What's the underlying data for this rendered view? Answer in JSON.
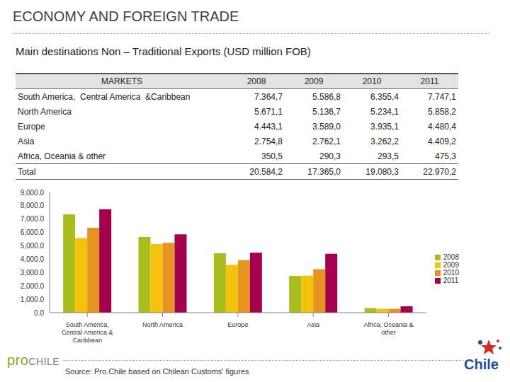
{
  "header": {
    "title": "ECONOMY AND FOREIGN TRADE",
    "subtitle": "Main destinations Non – Traditional Exports (USD million FOB)"
  },
  "table": {
    "columns": [
      "MARKETS",
      "2008",
      "2009",
      "2010",
      "2011"
    ],
    "rows": [
      [
        "South America,  Central America  &Caribbean",
        "7.364,7",
        "5.586,8",
        "6.355,4",
        "7.747,1"
      ],
      [
        "North America",
        "5.671,1",
        "5.136,7",
        "5.234,1",
        "5.858,2"
      ],
      [
        "Europe",
        "4.443,1",
        "3.589,0",
        "3.935,1",
        "4.480,4"
      ],
      [
        "Asia",
        "2.754,8",
        "2.762,1",
        "3.262,2",
        "4.409,2"
      ],
      [
        "Africa, Oceania & other",
        "350,5",
        "290,3",
        "293,5",
        "475,3"
      ],
      [
        "Total",
        "20.584,2",
        "17.365,0",
        "19.080,3",
        "22.970,2"
      ]
    ]
  },
  "chart_data": {
    "type": "bar",
    "categories": [
      "South America, Central America & Caribbean",
      "North America",
      "Europe",
      "Asia",
      "Africa, Oceania & other"
    ],
    "series": [
      {
        "name": "2008",
        "color": "#a9bd1e",
        "values": [
          7364.7,
          5671.1,
          4443.1,
          2754.8,
          350.5
        ]
      },
      {
        "name": "2009",
        "color": "#f4c20d",
        "values": [
          5586.8,
          5136.7,
          3589.0,
          2762.1,
          290.3
        ]
      },
      {
        "name": "2010",
        "color": "#e5951f",
        "values": [
          6355.4,
          5234.1,
          3935.1,
          3262.2,
          293.5
        ]
      },
      {
        "name": "2011",
        "color": "#a3004d",
        "values": [
          7747.1,
          5858.2,
          4480.4,
          4409.2,
          475.3
        ]
      }
    ],
    "ylim": [
      0,
      9000
    ],
    "yticks": [
      {
        "value": 0,
        "label": "0.0"
      },
      {
        "value": 1000,
        "label": "1,000.0"
      },
      {
        "value": 2000,
        "label": "2,000.0"
      },
      {
        "value": 3000,
        "label": "3,000.0"
      },
      {
        "value": 4000,
        "label": "4,000.0"
      },
      {
        "value": 5000,
        "label": "5,000.0"
      },
      {
        "value": 6000,
        "label": "6,000.0"
      },
      {
        "value": 7000,
        "label": "7,000.0"
      },
      {
        "value": 8000,
        "label": "8,000.0"
      },
      {
        "value": 9000,
        "label": "9,000.0"
      }
    ],
    "grid": false,
    "legend": "right"
  },
  "source": "Source: Pro.Chile based on Chilean Customs' figures",
  "logos": {
    "left": [
      "pro",
      "CHILE"
    ],
    "right": "Chile"
  }
}
